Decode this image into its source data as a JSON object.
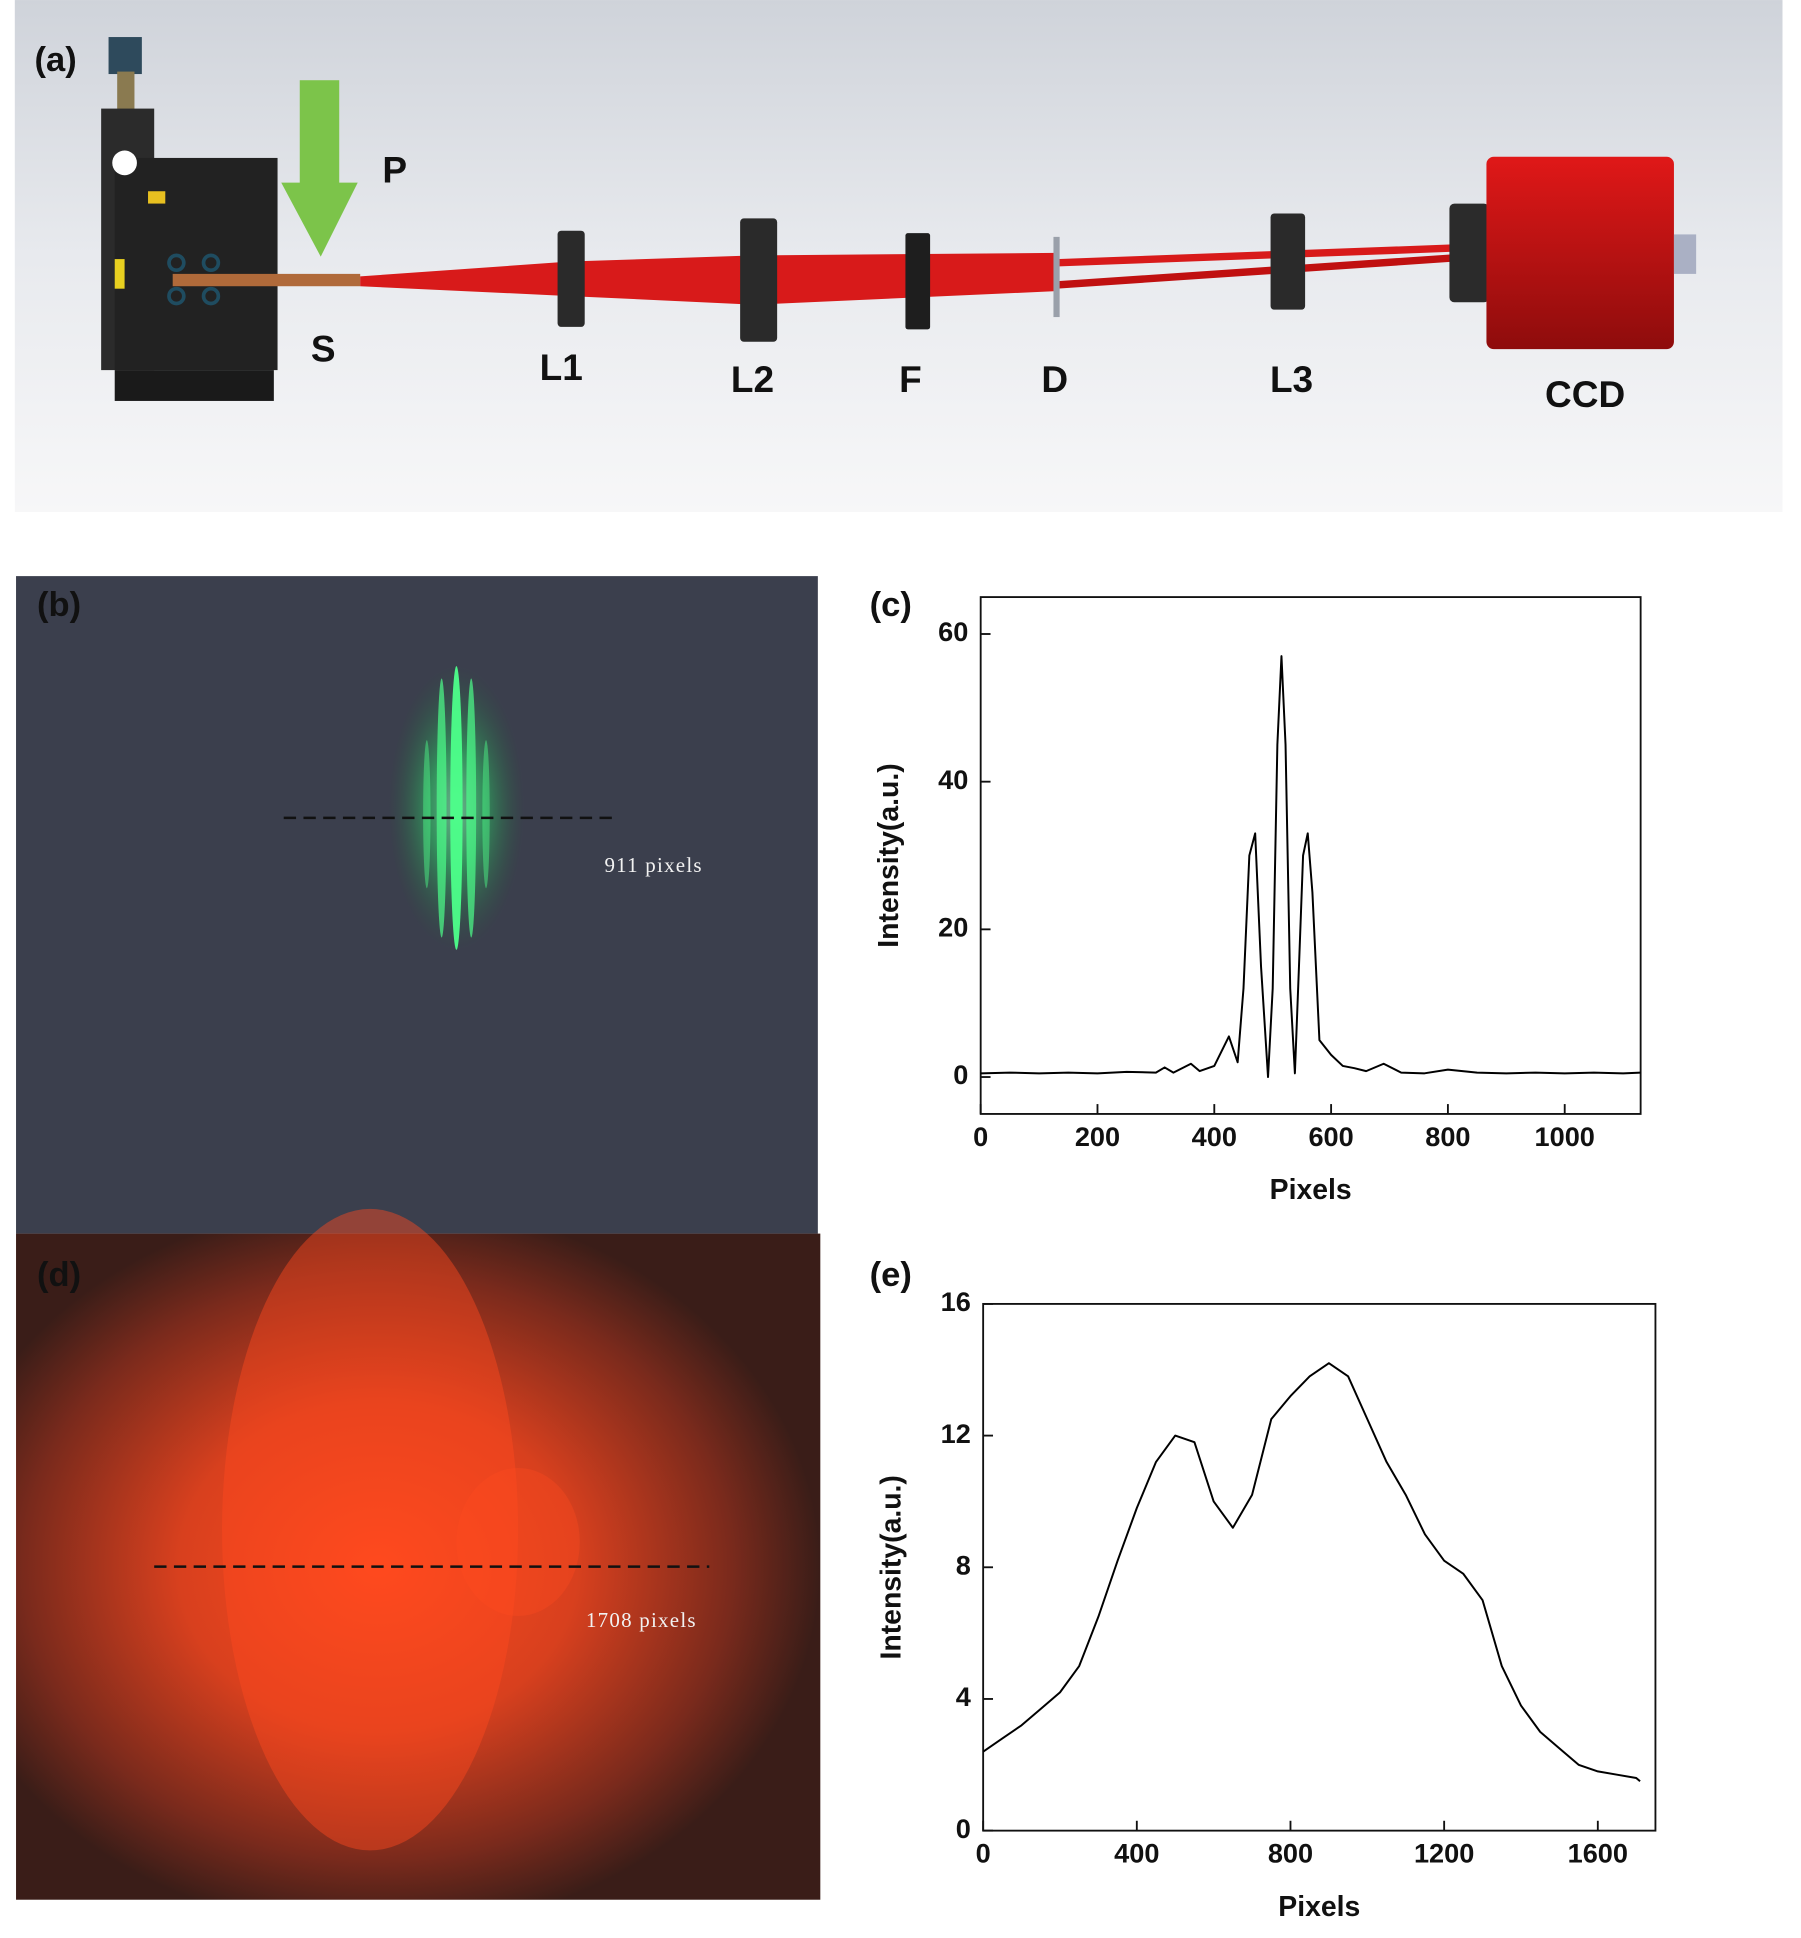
{
  "panel_a": {
    "label": "(a)",
    "components": {
      "p": "P",
      "s": "S",
      "l1": "L1",
      "l2": "L2",
      "f": "F",
      "d": "D",
      "l3": "L3",
      "ccd": "CCD"
    }
  },
  "panel_b": {
    "label": "(b)",
    "annotation": "911 pixels"
  },
  "panel_d": {
    "label": "(d)",
    "annotation": "1708 pixels"
  },
  "chart_data": [
    {
      "type": "line",
      "label": "(c)",
      "xlabel": "Pixels",
      "ylabel": "Intensity(a.u.)",
      "color": "#000000",
      "x": [
        0,
        50,
        100,
        150,
        200,
        250,
        300,
        315,
        330,
        360,
        375,
        400,
        425,
        440,
        450,
        460,
        470,
        480,
        492,
        500,
        508,
        515,
        522,
        530,
        538,
        545,
        552,
        560,
        568,
        580,
        600,
        620,
        640,
        660,
        690,
        720,
        760,
        800,
        850,
        900,
        950,
        1000,
        1050,
        1100,
        1130
      ],
      "values": [
        0.5,
        0.6,
        0.5,
        0.6,
        0.5,
        0.7,
        0.6,
        1.3,
        0.6,
        1.8,
        0.8,
        1.5,
        5.5,
        2,
        12,
        30,
        33,
        15,
        0,
        12,
        45,
        57,
        45,
        12,
        0.5,
        15,
        30,
        33,
        25,
        5,
        3,
        1.5,
        1.2,
        0.8,
        1.8,
        0.6,
        0.5,
        1.0,
        0.6,
        0.5,
        0.6,
        0.5,
        0.6,
        0.5,
        0.6
      ],
      "xlim": [
        0,
        1130
      ],
      "ylim": [
        -5,
        65
      ],
      "xticks": [
        0,
        200,
        400,
        600,
        800,
        1000
      ],
      "yticks": [
        0,
        20,
        40,
        60
      ]
    },
    {
      "type": "line",
      "label": "(e)",
      "xlabel": "Pixels",
      "ylabel": "Intensity(a.u.)",
      "color": "#000000",
      "x": [
        0,
        50,
        100,
        150,
        200,
        250,
        300,
        350,
        400,
        450,
        500,
        550,
        600,
        650,
        700,
        750,
        800,
        850,
        900,
        950,
        1000,
        1050,
        1100,
        1150,
        1200,
        1250,
        1300,
        1350,
        1400,
        1450,
        1500,
        1550,
        1600,
        1650,
        1700,
        1710
      ],
      "values": [
        2.4,
        2.8,
        3.2,
        3.7,
        4.2,
        5.0,
        6.5,
        8.2,
        9.8,
        11.2,
        12.0,
        11.8,
        10.0,
        9.2,
        10.2,
        12.5,
        13.2,
        13.8,
        14.2,
        13.8,
        12.5,
        11.2,
        10.2,
        9.0,
        8.2,
        7.8,
        7.0,
        5.0,
        3.8,
        3.0,
        2.5,
        2.0,
        1.8,
        1.7,
        1.6,
        1.5
      ],
      "xlim": [
        0,
        1750
      ],
      "ylim": [
        0,
        16
      ],
      "xticks": [
        0,
        400,
        800,
        1200,
        1600
      ],
      "yticks": [
        0,
        4,
        8,
        12,
        16
      ]
    }
  ]
}
